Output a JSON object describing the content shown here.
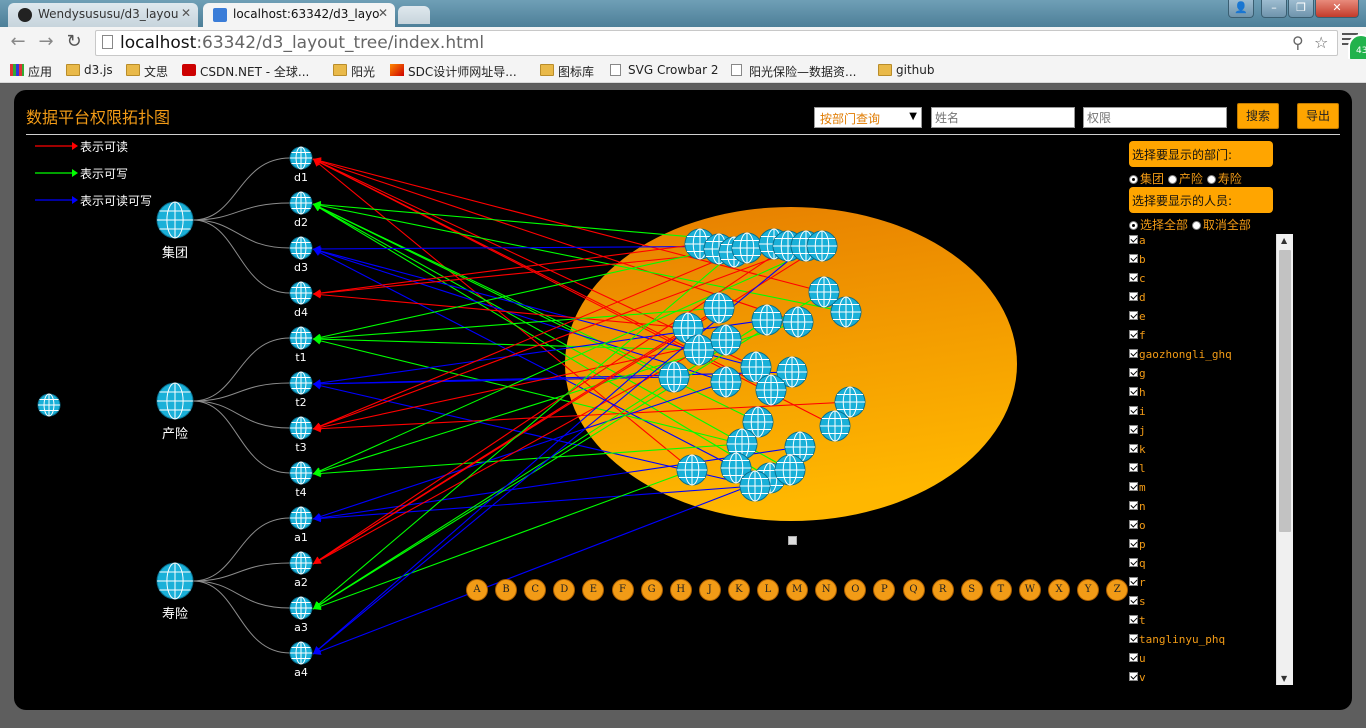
{
  "browser": {
    "tabs": [
      {
        "title": "Wendysususu/d3_layou",
        "active": false
      },
      {
        "title": "localhost:63342/d3_layo",
        "active": true
      }
    ],
    "url_host": "localhost",
    "url_rest": ":63342/d3_layout_tree/index.html",
    "extension_badge": "43",
    "bookmarks": [
      {
        "label": "应用",
        "icon": "apps-icon"
      },
      {
        "label": "d3.js",
        "icon": "folder-icon"
      },
      {
        "label": "文思",
        "icon": "folder-icon"
      },
      {
        "label": "CSDN.NET - 全球...",
        "icon": "csdn-icon"
      },
      {
        "label": "阳光",
        "icon": "folder-icon"
      },
      {
        "label": "SDC设计师网址导...",
        "icon": "sdc-icon"
      },
      {
        "label": "图标库",
        "icon": "folder-icon"
      },
      {
        "label": "SVG Crowbar 2",
        "icon": "page-icon"
      },
      {
        "label": "阳光保险—数据资...",
        "icon": "page-icon"
      },
      {
        "label": "github",
        "icon": "folder-icon"
      }
    ]
  },
  "app": {
    "title": "数据平台权限拓扑图",
    "dept_select": "按部门查询",
    "name_placeholder": "姓名",
    "perm_placeholder": "权限",
    "search_label": "搜索",
    "export_label": "导出"
  },
  "legend": [
    {
      "label": "表示可读",
      "color": "#ff0000"
    },
    {
      "label": "表示可写",
      "color": "#00ff00"
    },
    {
      "label": "表示可读可写",
      "color": "#0000ff"
    }
  ],
  "groups": [
    {
      "id": "g0",
      "label": "集团",
      "children": [
        "d1",
        "d2",
        "d3",
        "d4"
      ]
    },
    {
      "id": "g1",
      "label": "产险",
      "children": [
        "t1",
        "t2",
        "t3",
        "t4"
      ]
    },
    {
      "id": "g2",
      "label": "寿险",
      "children": [
        "a1",
        "a2",
        "a3",
        "a4"
      ]
    }
  ],
  "dept_nodes": [
    "d1",
    "d2",
    "d3",
    "d4",
    "t1",
    "t2",
    "t3",
    "t4",
    "a1",
    "a2",
    "a3",
    "a4"
  ],
  "letters": [
    "A",
    "B",
    "C",
    "D",
    "E",
    "F",
    "G",
    "H",
    "J",
    "K",
    "L",
    "M",
    "N",
    "O",
    "P",
    "Q",
    "R",
    "S",
    "T",
    "W",
    "X",
    "Y",
    "Z"
  ],
  "panel": {
    "dept_heading": "选择要显示的部门:",
    "dept_options": [
      {
        "label": "集团",
        "checked": true
      },
      {
        "label": "产险",
        "checked": false
      },
      {
        "label": "寿险",
        "checked": false
      }
    ],
    "user_heading": "选择要显示的人员:",
    "user_options": [
      {
        "label": "选择全部",
        "checked": true
      },
      {
        "label": "取消全部",
        "checked": false
      }
    ],
    "users": [
      "a",
      "b",
      "c",
      "d",
      "e",
      "f",
      "gaozhongli_ghq",
      "g",
      "h",
      "i",
      "j",
      "k",
      "l",
      "m",
      "n",
      "o",
      "p",
      "q",
      "r",
      "s",
      "t",
      "tanglinyu_phq",
      "u",
      "v"
    ]
  },
  "colors": {
    "read": "#ff0000",
    "write": "#00ff00",
    "readwrite": "#0000ff",
    "accent": "#f29b16",
    "node": "#1ab0d8"
  }
}
